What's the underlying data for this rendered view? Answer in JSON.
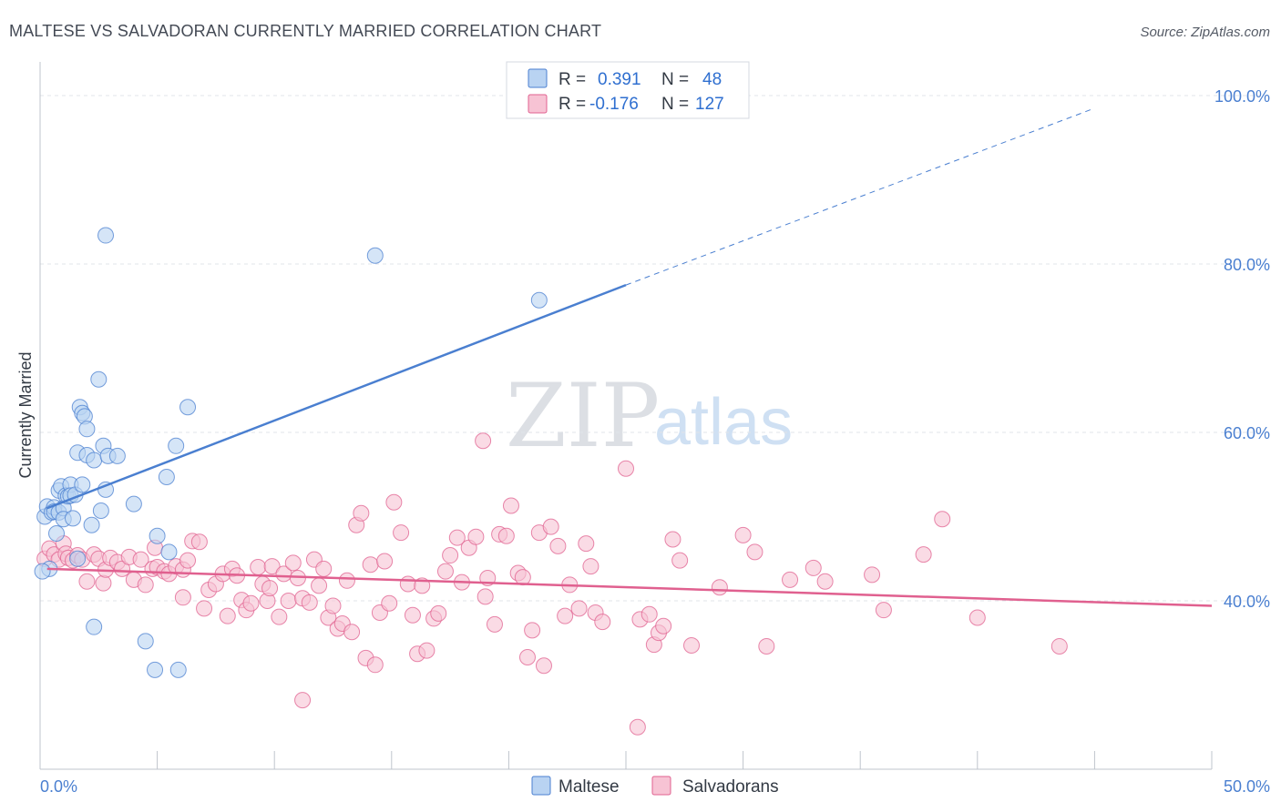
{
  "title": "MALTESE VS SALVADORAN CURRENTLY MARRIED CORRELATION CHART",
  "source": "Source: ZipAtlas.com",
  "watermark": {
    "zip": "ZIP",
    "atlas": "atlas"
  },
  "colors": {
    "maltese": "#4a7fd0",
    "maltese_fill": "#b9d3f2",
    "salvadoran": "#e0608f",
    "salvadoran_fill": "#f7c3d4",
    "tick": "#4a7fd0"
  },
  "legend_top": [
    {
      "r_label": "R =",
      "r_value": "0.391",
      "n_label": "N =",
      "n_value": "48"
    },
    {
      "r_label": "R =",
      "r_value": "-0.176",
      "n_label": "N =",
      "n_value": "127"
    }
  ],
  "legend_bottom": [
    "Maltese",
    "Salvadorans"
  ],
  "chart_data": {
    "type": "scatter",
    "title": "MALTESE VS SALVADORAN CURRENTLY MARRIED CORRELATION CHART",
    "xlabel": "",
    "ylabel": "Currently Married",
    "xlim": [
      0,
      50
    ],
    "ylim": [
      20,
      104
    ],
    "x_tick_labels": [
      "0.0%",
      "50.0%"
    ],
    "y_ticks": [
      40,
      60,
      80,
      100
    ],
    "y_tick_labels": [
      "40.0%",
      "60.0%",
      "80.0%",
      "100.0%"
    ],
    "grid": true,
    "legend": "top-center",
    "series": [
      {
        "name": "Maltese",
        "R": 0.391,
        "N": 48,
        "trend": {
          "x_start": 0.3,
          "y_start": 51.0,
          "x_end": 25.0,
          "y_end": 77.5,
          "x_dash_end": 45.0,
          "y_dash_end": 98.5
        },
        "points": [
          [
            0.2,
            50.0
          ],
          [
            0.3,
            51.2
          ],
          [
            0.4,
            43.8
          ],
          [
            0.5,
            50.5
          ],
          [
            0.6,
            51.1
          ],
          [
            0.6,
            50.6
          ],
          [
            0.7,
            48.0
          ],
          [
            0.8,
            53.1
          ],
          [
            0.8,
            50.5
          ],
          [
            0.9,
            53.6
          ],
          [
            1.0,
            51.0
          ],
          [
            1.0,
            49.7
          ],
          [
            1.1,
            52.5
          ],
          [
            1.2,
            52.4
          ],
          [
            1.3,
            53.8
          ],
          [
            1.3,
            52.5
          ],
          [
            1.4,
            49.8
          ],
          [
            1.5,
            52.6
          ],
          [
            1.6,
            45.0
          ],
          [
            1.6,
            57.6
          ],
          [
            1.7,
            63.0
          ],
          [
            1.8,
            62.3
          ],
          [
            1.8,
            53.8
          ],
          [
            1.9,
            61.9
          ],
          [
            2.0,
            60.4
          ],
          [
            2.0,
            57.3
          ],
          [
            2.2,
            49.0
          ],
          [
            2.3,
            36.9
          ],
          [
            2.3,
            56.7
          ],
          [
            2.5,
            66.3
          ],
          [
            2.6,
            50.7
          ],
          [
            2.7,
            58.4
          ],
          [
            2.8,
            83.4
          ],
          [
            2.8,
            53.2
          ],
          [
            2.9,
            57.2
          ],
          [
            3.3,
            57.2
          ],
          [
            4.0,
            51.5
          ],
          [
            4.5,
            35.2
          ],
          [
            4.9,
            31.8
          ],
          [
            5.0,
            47.7
          ],
          [
            5.4,
            54.7
          ],
          [
            5.5,
            45.8
          ],
          [
            5.8,
            58.4
          ],
          [
            5.9,
            31.8
          ],
          [
            6.3,
            63.0
          ],
          [
            14.3,
            81.0
          ],
          [
            21.3,
            75.7
          ],
          [
            0.1,
            43.5
          ]
        ]
      },
      {
        "name": "Salvadorans",
        "R": -0.176,
        "N": 127,
        "trend": {
          "x_start": 0.3,
          "y_start": 43.8,
          "x_end": 50.0,
          "y_end": 39.4
        },
        "points": [
          [
            0.2,
            45.0
          ],
          [
            0.4,
            46.2
          ],
          [
            0.6,
            45.5
          ],
          [
            0.8,
            44.9
          ],
          [
            1.0,
            46.8
          ],
          [
            1.1,
            45.6
          ],
          [
            1.2,
            45.1
          ],
          [
            1.4,
            44.8
          ],
          [
            1.6,
            45.4
          ],
          [
            1.8,
            44.9
          ],
          [
            2.0,
            42.3
          ],
          [
            2.3,
            45.5
          ],
          [
            2.5,
            45.0
          ],
          [
            2.7,
            42.1
          ],
          [
            2.8,
            43.7
          ],
          [
            3.0,
            45.1
          ],
          [
            3.3,
            44.6
          ],
          [
            3.5,
            43.8
          ],
          [
            3.8,
            45.2
          ],
          [
            4.0,
            42.5
          ],
          [
            4.3,
            44.9
          ],
          [
            4.5,
            41.9
          ],
          [
            4.8,
            43.8
          ],
          [
            4.9,
            46.3
          ],
          [
            5.0,
            44.0
          ],
          [
            5.3,
            43.5
          ],
          [
            5.5,
            43.2
          ],
          [
            5.8,
            44.1
          ],
          [
            6.1,
            43.7
          ],
          [
            6.3,
            44.8
          ],
          [
            6.5,
            47.1
          ],
          [
            6.8,
            47.0
          ],
          [
            7.0,
            39.1
          ],
          [
            7.2,
            41.3
          ],
          [
            7.5,
            42.0
          ],
          [
            7.8,
            43.2
          ],
          [
            8.0,
            38.2
          ],
          [
            8.2,
            43.8
          ],
          [
            8.4,
            43.0
          ],
          [
            8.6,
            40.1
          ],
          [
            8.8,
            38.9
          ],
          [
            9.0,
            39.7
          ],
          [
            9.3,
            44.0
          ],
          [
            9.5,
            42.0
          ],
          [
            9.7,
            40.0
          ],
          [
            9.9,
            44.1
          ],
          [
            10.2,
            38.1
          ],
          [
            10.4,
            43.2
          ],
          [
            10.6,
            40.0
          ],
          [
            10.8,
            44.5
          ],
          [
            11.0,
            42.7
          ],
          [
            11.2,
            40.3
          ],
          [
            11.5,
            39.8
          ],
          [
            11.7,
            44.9
          ],
          [
            11.9,
            41.8
          ],
          [
            12.1,
            43.8
          ],
          [
            12.3,
            38.0
          ],
          [
            12.5,
            39.4
          ],
          [
            12.7,
            36.7
          ],
          [
            12.9,
            37.3
          ],
          [
            13.1,
            42.4
          ],
          [
            13.3,
            36.3
          ],
          [
            13.5,
            49.0
          ],
          [
            13.7,
            50.4
          ],
          [
            13.9,
            33.2
          ],
          [
            14.1,
            44.3
          ],
          [
            14.3,
            32.4
          ],
          [
            14.5,
            38.6
          ],
          [
            14.7,
            44.7
          ],
          [
            14.9,
            39.7
          ],
          [
            15.1,
            51.7
          ],
          [
            15.4,
            48.1
          ],
          [
            15.7,
            42.0
          ],
          [
            15.9,
            38.3
          ],
          [
            16.1,
            33.7
          ],
          [
            16.3,
            41.8
          ],
          [
            16.5,
            34.1
          ],
          [
            16.8,
            37.9
          ],
          [
            17.0,
            38.5
          ],
          [
            17.3,
            43.5
          ],
          [
            17.5,
            45.4
          ],
          [
            17.8,
            47.5
          ],
          [
            18.0,
            42.2
          ],
          [
            18.3,
            46.3
          ],
          [
            18.6,
            47.6
          ],
          [
            18.9,
            59.0
          ],
          [
            19.1,
            42.7
          ],
          [
            19.4,
            37.2
          ],
          [
            19.6,
            47.9
          ],
          [
            19.9,
            47.7
          ],
          [
            20.1,
            51.3
          ],
          [
            20.4,
            43.3
          ],
          [
            20.6,
            42.8
          ],
          [
            20.8,
            33.3
          ],
          [
            21.0,
            36.5
          ],
          [
            21.3,
            48.1
          ],
          [
            21.5,
            32.3
          ],
          [
            21.8,
            48.8
          ],
          [
            22.1,
            46.5
          ],
          [
            22.4,
            38.2
          ],
          [
            22.6,
            41.9
          ],
          [
            23.0,
            39.1
          ],
          [
            23.3,
            46.8
          ],
          [
            23.5,
            44.1
          ],
          [
            23.7,
            38.6
          ],
          [
            24.0,
            37.5
          ],
          [
            25.0,
            55.7
          ],
          [
            25.6,
            37.8
          ],
          [
            26.0,
            38.4
          ],
          [
            26.2,
            34.8
          ],
          [
            26.4,
            36.2
          ],
          [
            26.6,
            37.0
          ],
          [
            27.0,
            47.3
          ],
          [
            27.3,
            44.8
          ],
          [
            27.8,
            34.7
          ],
          [
            29.0,
            41.6
          ],
          [
            30.0,
            47.8
          ],
          [
            30.5,
            45.8
          ],
          [
            31.0,
            34.6
          ],
          [
            32.0,
            42.5
          ],
          [
            33.0,
            43.9
          ],
          [
            33.5,
            42.3
          ],
          [
            36.0,
            38.9
          ],
          [
            37.7,
            45.5
          ],
          [
            38.5,
            49.7
          ],
          [
            40.0,
            38.0
          ],
          [
            43.5,
            34.6
          ],
          [
            25.5,
            25.0
          ],
          [
            11.2,
            28.2
          ],
          [
            19.0,
            40.5
          ],
          [
            9.8,
            41.5
          ],
          [
            35.5,
            43.1
          ],
          [
            6.1,
            40.4
          ]
        ]
      }
    ]
  }
}
